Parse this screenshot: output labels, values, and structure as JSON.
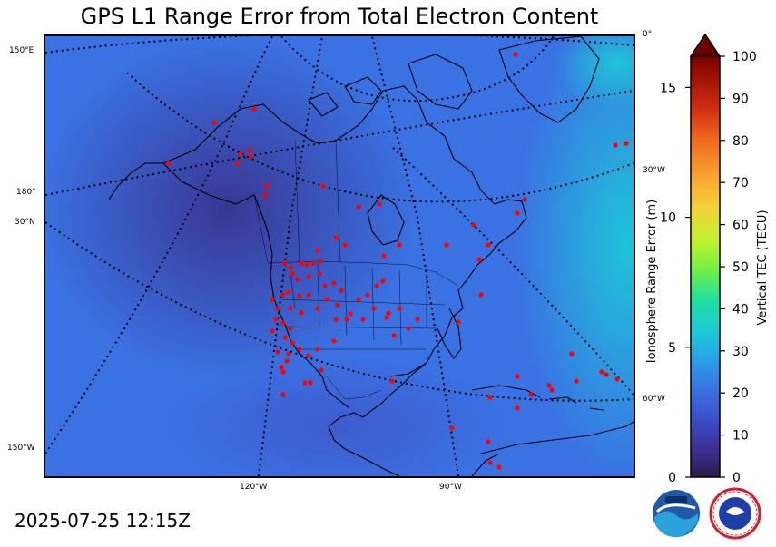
{
  "title": "GPS L1 Range Error from Total Electron Content",
  "timestamp": "2025-07-25 12:15Z",
  "map": {
    "left_labels": [
      "150°E",
      "180°",
      "30°N",
      "150°W"
    ],
    "right_labels": [
      "0°",
      "30°W",
      "60°W"
    ],
    "bottom_labels": [
      "120°W",
      "90°W"
    ]
  },
  "colorbar": {
    "left_axis_label": "Ionosphere Range Error (m)",
    "right_axis_label": "Vertical TEC (TECU)",
    "left_ticks": [
      "0",
      "5",
      "10",
      "15"
    ],
    "right_ticks": [
      "0",
      "10",
      "20",
      "30",
      "40",
      "50",
      "60",
      "70",
      "80",
      "90",
      "100"
    ],
    "extend_arrow_color": "#6b0000"
  },
  "colors": {
    "background_field": "#3b6fe0",
    "station_marker": "#ff0000",
    "coastline": "#000000"
  },
  "logos": [
    "noaa-logo",
    "national-weather-service-logo"
  ]
}
